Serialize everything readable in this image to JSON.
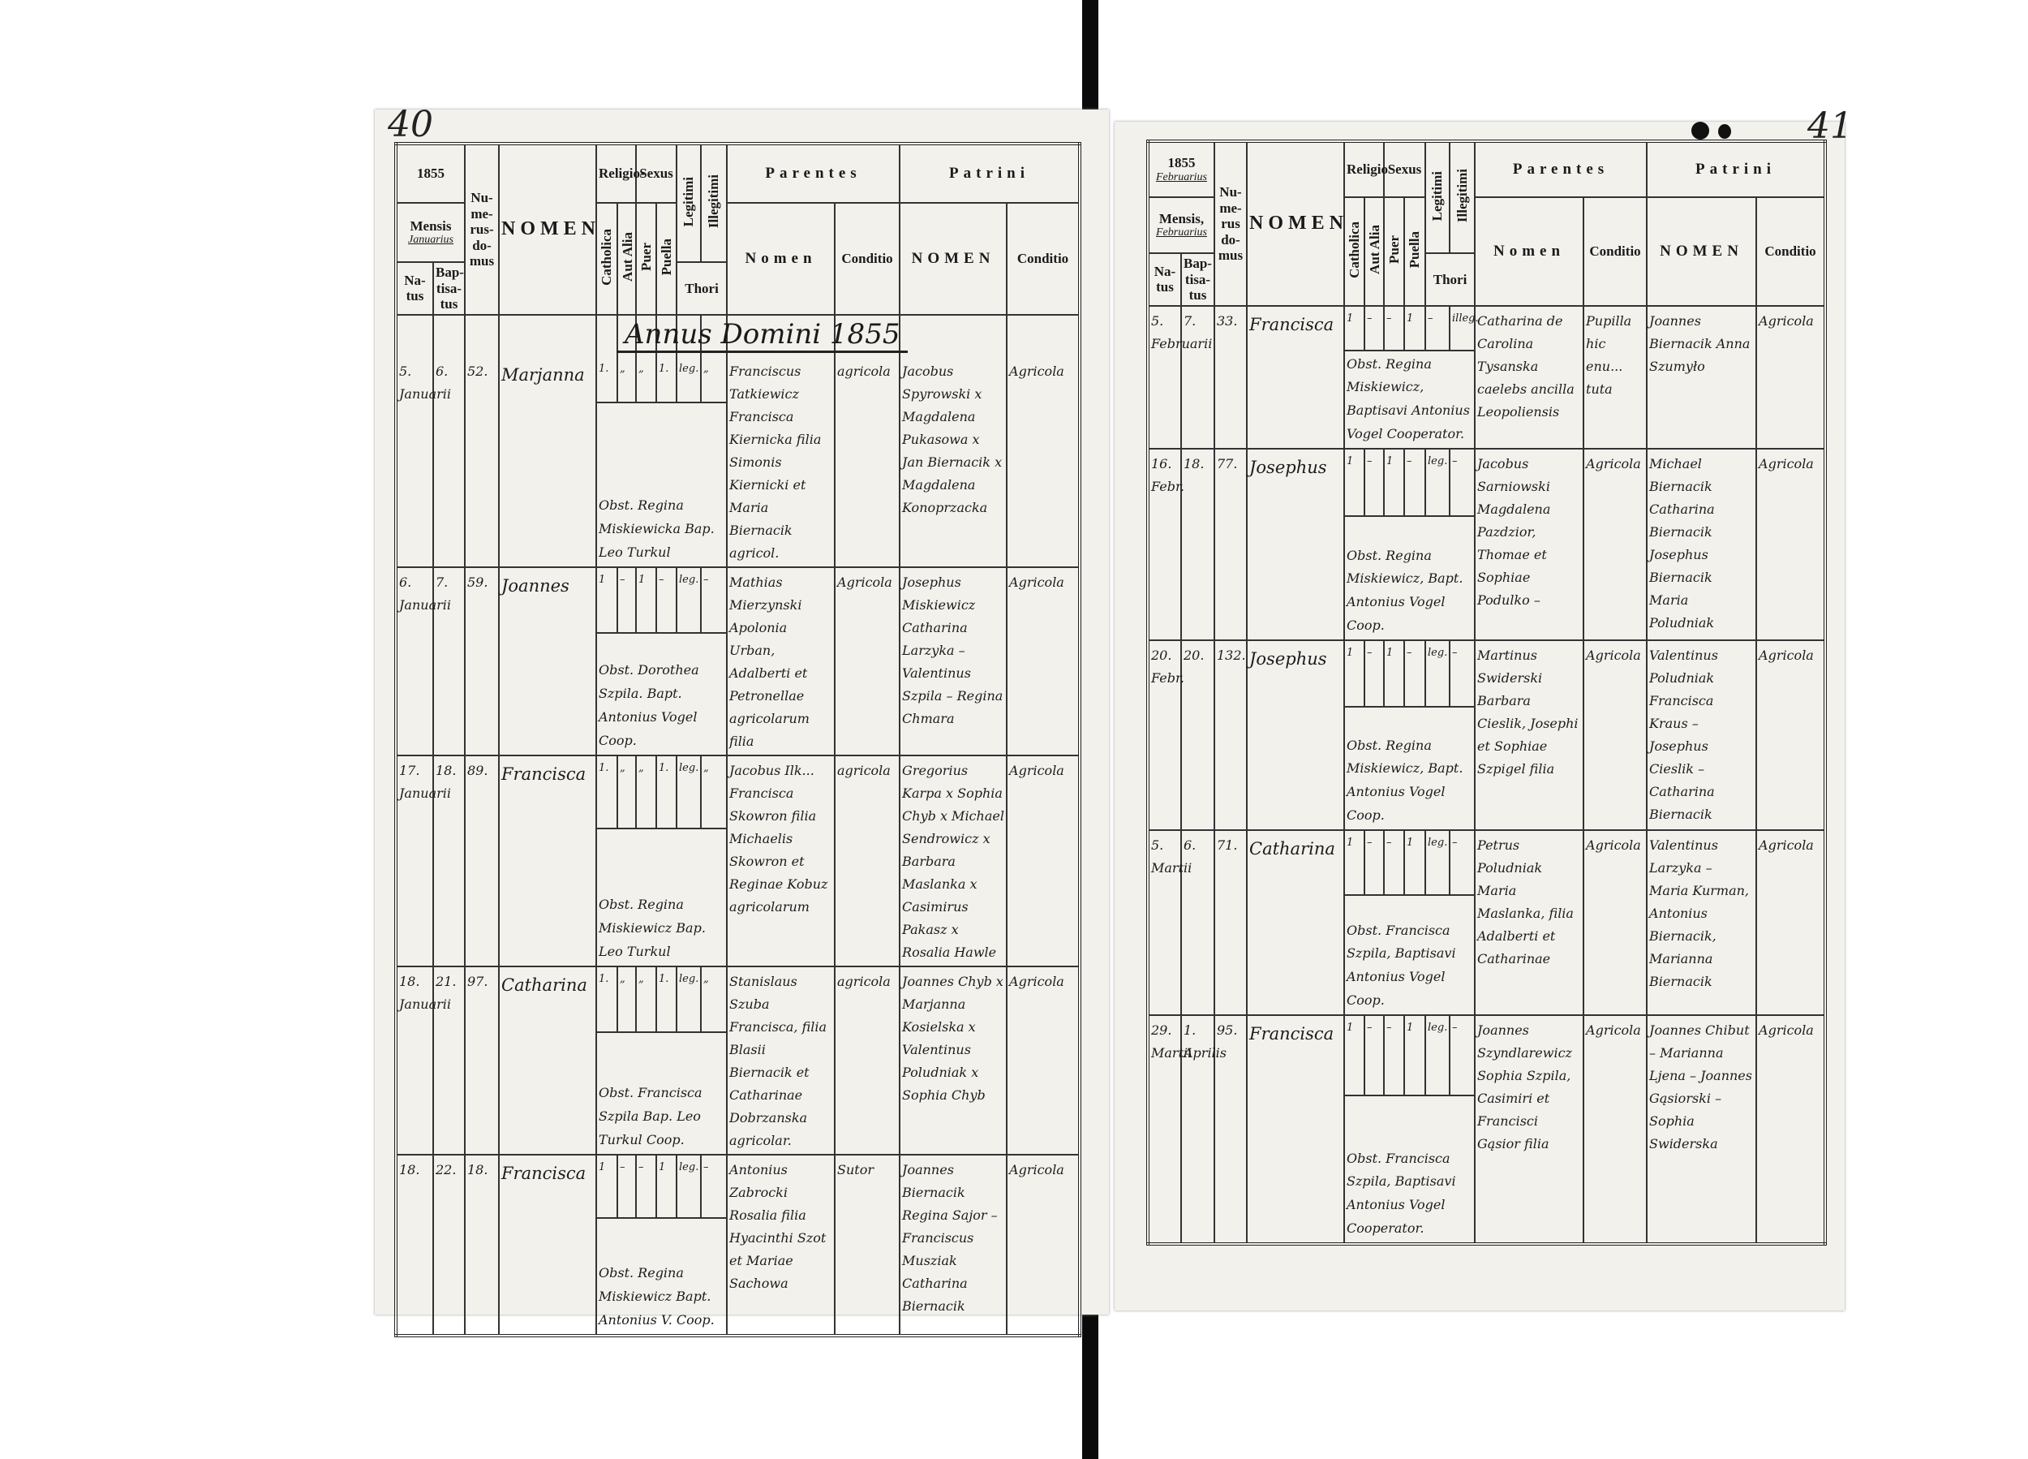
{
  "left_page": {
    "page_number": "40",
    "annus_title": "Annus Domini 1855",
    "header": {
      "year": "1855",
      "mensis_label": "Mensis",
      "mensis_value": "Januarius",
      "natus": "Na-tus",
      "baptisatus": "Bap-tisa-tus",
      "numerus_domus": "Nu-me-rus-do-mus",
      "nomen": "NOMEN",
      "religio": "Religio-",
      "catholica": "Catholica",
      "aut_alia": "Aut Alia",
      "sexus": "Sexus",
      "puer": "Puer",
      "puella": "Puella",
      "legitimi": "Legitimi",
      "illegitimi": "Illegitimi",
      "thori": "Thori",
      "parentes": "Parentes",
      "parentes_nomen": "Nomen",
      "parentes_conditio": "Conditio",
      "patrini": "Patrini",
      "patrini_nomen": "NOMEN",
      "patrini_conditio": "Conditio"
    },
    "entries": [
      {
        "natus": "5. Januarii",
        "baptisatus": "6.",
        "domus": "52.",
        "nomen": "Marjanna",
        "catholica": "1.",
        "aut_alia": "„",
        "puer": "„",
        "puella": "1.",
        "legitimi": "leg.",
        "illegitimi": "„",
        "note": "Obst. Regina Miskiewicka Bap. Leo Turkul",
        "parentes": "Franciscus Tatkiewicz Francisca Kiernicka filia Simonis Kiernicki et Maria Biernacik agricol.",
        "parentes_conditio": "agricola",
        "patrini": "Jacobus Spyrowski x Magdalena Pukasowa x Jan Biernacik x Magdalena Konoprzacka",
        "patrini_conditio": "Agricola"
      },
      {
        "natus": "6. Januarii",
        "baptisatus": "7.",
        "domus": "59.",
        "nomen": "Joannes",
        "catholica": "1",
        "aut_alia": "–",
        "puer": "1",
        "puella": "–",
        "legitimi": "leg.",
        "illegitimi": "–",
        "note": "Obst. Dorothea Szpila. Bapt. Antonius Vogel Coop.",
        "parentes": "Mathias Mierzynski Apolonia Urban, Adalberti et Petronellae agricolarum filia",
        "parentes_conditio": "Agricola",
        "patrini": "Josephus Miskiewicz Catharina Larzyka – Valentinus Szpila – Regina Chmara",
        "patrini_conditio": "Agricola"
      },
      {
        "natus": "17. Januarii",
        "baptisatus": "18.",
        "domus": "89.",
        "nomen": "Francisca",
        "catholica": "1.",
        "aut_alia": "„",
        "puer": "„",
        "puella": "1.",
        "legitimi": "leg.",
        "illegitimi": "„",
        "note": "Obst. Regina Miskiewicz Bap. Leo Turkul",
        "parentes": "Jacobus Ilk... Francisca Skowron filia Michaelis Skowron et Reginae Kobuz agricolarum",
        "parentes_conditio": "agricola",
        "patrini": "Gregorius Karpa x Sophia Chyb x Michael Sendrowicz x Barbara Maslanka x Casimirus Pakasz x Rosalia Hawle",
        "patrini_conditio": "Agricola"
      },
      {
        "natus": "18. Januarii",
        "baptisatus": "21.",
        "domus": "97.",
        "nomen": "Catharina",
        "catholica": "1.",
        "aut_alia": "„",
        "puer": "„",
        "puella": "1.",
        "legitimi": "leg.",
        "illegitimi": "„",
        "note": "Obst. Francisca Szpila Bap. Leo Turkul Coop.",
        "parentes": "Stanislaus Szuba Francisca, filia Blasii Biernacik et Catharinae Dobrzanska agricolar.",
        "parentes_conditio": "agricola",
        "patrini": "Joannes Chyb x Marjanna Kosielska x Valentinus Poludniak x Sophia Chyb",
        "patrini_conditio": "Agricola"
      },
      {
        "natus": "18.",
        "baptisatus": "22.",
        "domus": "18.",
        "nomen": "Francisca",
        "catholica": "1",
        "aut_alia": "–",
        "puer": "–",
        "puella": "1",
        "legitimi": "leg.",
        "illegitimi": "–",
        "note": "Obst. Regina Miskiewicz Bapt. Antonius V. Coop.",
        "parentes": "Antonius Zabrocki Rosalia filia Hyacinthi Szot et Mariae Sachowa",
        "parentes_conditio": "Sutor",
        "patrini": "Joannes Biernacik Regina Sajor – Franciscus Musziak Catharina Biernacik",
        "patrini_conditio": "Agricola"
      }
    ]
  },
  "right_page": {
    "page_number": "41",
    "header": {
      "year": "1855",
      "year_month": "Februarius",
      "mensis_label": "Mensis,",
      "mensis_value": "Februarius",
      "natus": "Na-tus",
      "baptisatus": "Bap-tisa-tus",
      "numerus_domus": "Nu-me-rus do-mus",
      "nomen": "NOMEN",
      "religio": "Religio",
      "catholica": "Catholica",
      "aut_alia": "Aut Alia",
      "sexus": "Sexus",
      "puer": "Puer",
      "puella": "Puella",
      "legitimi": "Legitimi",
      "illegitimi": "Illegitimi",
      "thori": "Thori",
      "parentes": "Parentes",
      "parentes_nomen": "Nomen",
      "parentes_conditio": "Conditio",
      "patrini": "Patrini",
      "patrini_nomen": "NOMEN",
      "patrini_conditio": "Conditio"
    },
    "entries": [
      {
        "natus": "5. Februarii",
        "baptisatus": "7.",
        "domus": "33.",
        "nomen": "Francisca",
        "catholica": "1",
        "aut_alia": "–",
        "puer": "–",
        "puella": "1",
        "legitimi": "–",
        "illegitimi": "illeg.",
        "note": "Obst. Regina Miskiewicz, Baptisavi Antonius Vogel Cooperator.",
        "parentes": "Catharina de Carolina Tysanska caelebs ancilla Leopoliensis",
        "parentes_conditio": "Pupilla hic enu... tuta",
        "patrini": "Joannes Biernacik Anna Szumyło",
        "patrini_conditio": "Agricola"
      },
      {
        "natus": "16. Febr.",
        "baptisatus": "18.",
        "domus": "77.",
        "nomen": "Josephus",
        "catholica": "1",
        "aut_alia": "–",
        "puer": "1",
        "puella": "–",
        "legitimi": "leg.",
        "illegitimi": "–",
        "note": "Obst. Regina Miskiewicz, Bapt. Antonius Vogel Coop.",
        "parentes": "Jacobus Sarniowski Magdalena Pazdzior, Thomae et Sophiae Podulko –",
        "parentes_conditio": "Agricola",
        "patrini": "Michael Biernacik Catharina Biernacik Josephus Biernacik Maria Poludniak",
        "patrini_conditio": "Agricola"
      },
      {
        "natus": "20. Febr.",
        "baptisatus": "20.",
        "domus": "132.",
        "nomen": "Josephus",
        "catholica": "1",
        "aut_alia": "–",
        "puer": "1",
        "puella": "–",
        "legitimi": "leg.",
        "illegitimi": "–",
        "note": "Obst. Regina Miskiewicz, Bapt. Antonius Vogel Coop.",
        "parentes": "Martinus Swiderski Barbara Cieslik, Josephi et Sophiae Szpigel filia",
        "parentes_conditio": "Agricola",
        "patrini": "Valentinus Poludniak Francisca Kraus – Josephus Cieslik – Catharina Biernacik",
        "patrini_conditio": "Agricola"
      },
      {
        "natus": "5. Martii",
        "baptisatus": "6.",
        "domus": "71.",
        "nomen": "Catharina",
        "catholica": "1",
        "aut_alia": "–",
        "puer": "–",
        "puella": "1",
        "legitimi": "leg.",
        "illegitimi": "–",
        "note": "Obst. Francisca Szpila, Baptisavi Antonius Vogel Coop.",
        "parentes": "Petrus Poludniak Maria Maslanka, filia Adalberti et Catharinae",
        "parentes_conditio": "Agricola",
        "patrini": "Valentinus Larzyka – Maria Kurman, Antonius Biernacik, Marianna Biernacik",
        "patrini_conditio": "Agricola"
      },
      {
        "natus": "29. Martii",
        "baptisatus": "1. Aprilis",
        "domus": "95.",
        "nomen": "Francisca",
        "catholica": "1",
        "aut_alia": "–",
        "puer": "–",
        "puella": "1",
        "legitimi": "leg.",
        "illegitimi": "–",
        "note": "Obst. Francisca Szpila, Baptisavi Antonius Vogel Cooperator.",
        "parentes": "Joannes Szyndlarewicz Sophia Szpila, Casimiri et Francisci Gąsior filia",
        "parentes_conditio": "Agricola",
        "patrini": "Joannes Chibut – Marianna Ljena – Joannes Gąsiorski – Sophia Swiderska",
        "patrini_conditio": "Agricola"
      }
    ]
  }
}
